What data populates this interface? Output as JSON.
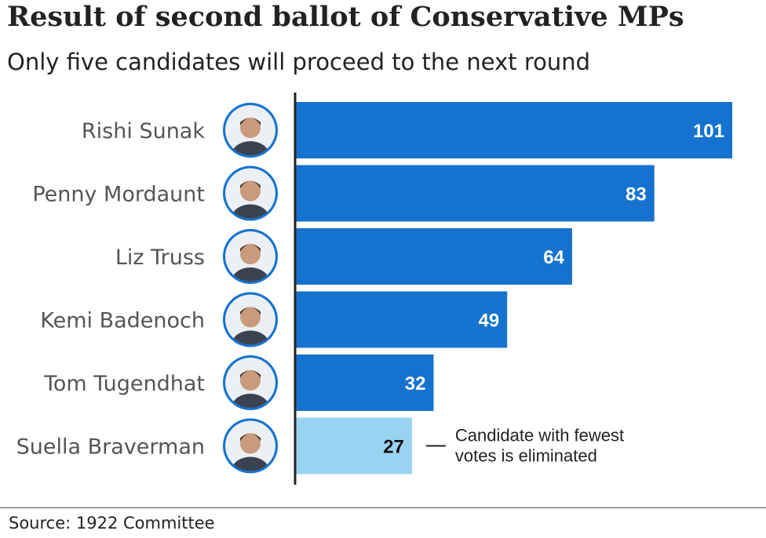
{
  "header": {
    "title": "Result of second ballot of Conservative MPs",
    "subtitle": "Only five candidates will proceed to the next round"
  },
  "footer": {
    "source": "Source: 1922 Committee"
  },
  "colors": {
    "bar": "#1573CF",
    "bar_eliminated": "#98D4F2",
    "label_in_bar": "#FFFFFF",
    "label_eliminated": "#111111",
    "axis": "#222222",
    "category_text": "#555555",
    "portrait_ring": "#1573CF"
  },
  "chart_data": {
    "type": "bar",
    "orientation": "horizontal",
    "title": "Result of second ballot of Conservative MPs",
    "subtitle": "Only five candidates will proceed to the next round",
    "categories": [
      "Rishi Sunak",
      "Penny Mordaunt",
      "Liz Truss",
      "Kemi Badenoch",
      "Tom Tugendhat",
      "Suella Braverman"
    ],
    "values": [
      101,
      83,
      64,
      49,
      32,
      27
    ],
    "eliminated": [
      false,
      false,
      false,
      false,
      false,
      true
    ],
    "xlim": [
      0,
      101
    ],
    "grid": false,
    "data_labels": true,
    "annotation": {
      "target": "Suella Braverman",
      "lines": [
        "Candidate with fewest",
        "votes is eliminated"
      ]
    },
    "portrait_icons": [
      "person-portrait",
      "person-portrait",
      "person-portrait",
      "person-portrait",
      "person-portrait",
      "person-portrait"
    ]
  }
}
